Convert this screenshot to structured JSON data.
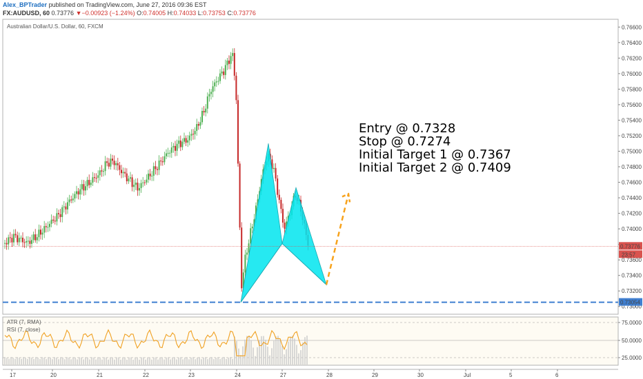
{
  "header": {
    "author": "Alex_BPTrader",
    "published": "published on TradingView.com, June 27, 2016 09:36 EST",
    "symbol": "FX:AUDUSD, 60",
    "last": "0.73776",
    "change_arrow": "▼",
    "change": "−0.00923 (−1.24%)",
    "o_label": "O:",
    "o_value": "0.74005",
    "h_label": "H:",
    "h_value": "0.74033",
    "l_label": "L:",
    "l_value": "0.73753",
    "c_label": "C:",
    "c_value": "0.73776"
  },
  "chart_title": "Australian Dollar/U.S. Dollar, 60, FXCM",
  "annotation": {
    "lines": [
      "Entry @ 0.7328",
      "Stop @ 0.7274",
      "Initial Target 1 @ 0.7367",
      "Initial Target 2 @ 0.7409"
    ]
  },
  "price_tags": {
    "current": "0.73776",
    "countdown": "23:57",
    "support": "0.73054"
  },
  "indicators": {
    "atr": "ATR (7, RMA)",
    "rsi": "RSI (7, close)"
  },
  "indicator_axis": [
    "75.0000",
    "50.0000",
    "25.0000"
  ],
  "colors": {
    "bull": "#4caf50",
    "bear": "#c62828",
    "pattern": "#00e5ee",
    "projection": "#f7a21b",
    "support": "#3f7fd1",
    "price_line": "#d9534f",
    "rsi": "#f0a020"
  },
  "chart_data": {
    "type": "candlestick",
    "symbol": "AUDUSD",
    "x_ticks": [
      "17",
      "20",
      "21",
      "22",
      "23",
      "24",
      "27",
      "28",
      "29",
      "30",
      "Jul",
      "5",
      "6"
    ],
    "y_ticks": [
      "0.76600",
      "0.76400",
      "0.76200",
      "0.76000",
      "0.75800",
      "0.75600",
      "0.75400",
      "0.75200",
      "0.75000",
      "0.74800",
      "0.74600",
      "0.74400",
      "0.74200",
      "0.74000",
      "0.73800",
      "0.73600",
      "0.73400",
      "0.73200",
      "0.73000"
    ],
    "ylim": [
      0.729,
      0.767
    ],
    "current_price": 0.73776,
    "support_level": 0.73054,
    "pattern_points": [
      {
        "bar": 0,
        "price": 0.73054
      },
      {
        "bar": 10,
        "price": 0.751
      },
      {
        "bar": 15,
        "price": 0.7381
      },
      {
        "bar": 20,
        "price": 0.7453
      },
      {
        "bar": 31,
        "price": 0.7328
      }
    ],
    "projection": [
      {
        "bar": 31,
        "price": 0.7328
      },
      {
        "bar": 39,
        "price": 0.7445
      }
    ],
    "annotation_levels": {
      "entry": 0.7328,
      "stop": 0.7274,
      "target1": 0.7367,
      "target2": 0.7409
    }
  }
}
